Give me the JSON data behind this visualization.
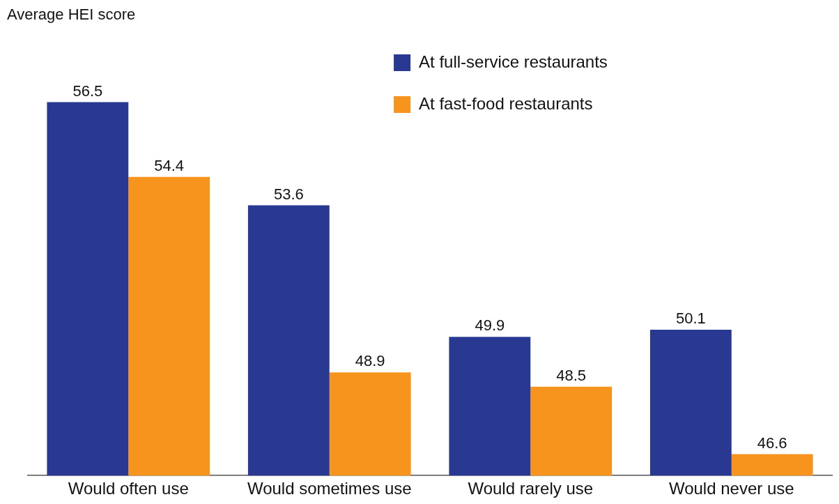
{
  "chart_data": {
    "type": "bar",
    "annotations": [
      "Average HEI score"
    ],
    "categories": [
      "Would often use",
      "Would sometimes use",
      "Would rarely use",
      "Would never use"
    ],
    "series": [
      {
        "name": "At full-service restaurants",
        "color": "#293891",
        "values": [
          56.5,
          53.6,
          49.9,
          50.1
        ]
      },
      {
        "name": "At fast-food restaurants",
        "color": "#f7941d",
        "values": [
          54.4,
          48.9,
          48.5,
          46.6
        ]
      }
    ],
    "data_labels": true,
    "legend": "top right",
    "grid": false
  }
}
